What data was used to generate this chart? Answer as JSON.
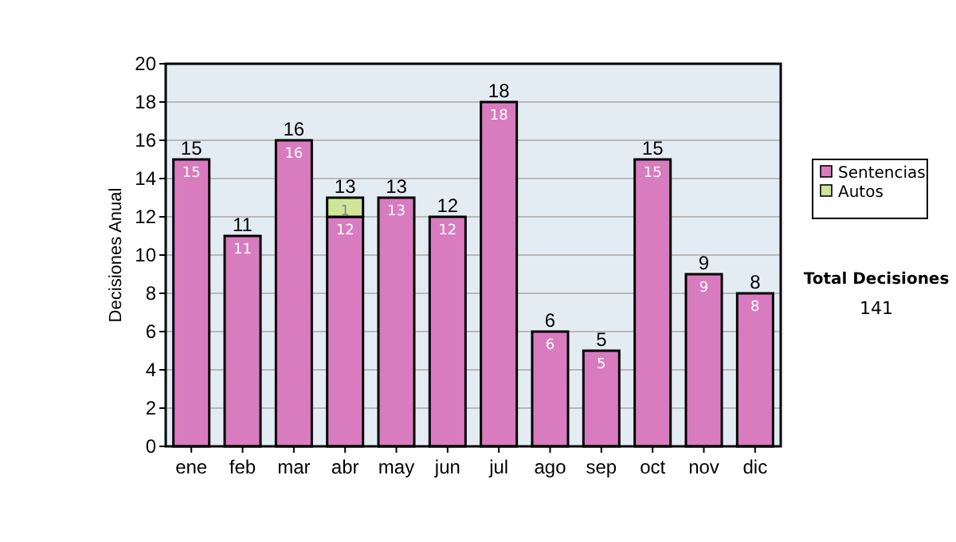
{
  "chart_data": {
    "type": "bar",
    "ylabel": "Decisiones Anual",
    "categories": [
      "ene",
      "feb",
      "mar",
      "abr",
      "may",
      "jun",
      "jul",
      "ago",
      "sep",
      "oct",
      "nov",
      "dic"
    ],
    "series": [
      {
        "name": "Sentencias",
        "color": "#d97bbf",
        "values": [
          15,
          11,
          16,
          12,
          13,
          12,
          18,
          6,
          5,
          15,
          9,
          8
        ]
      },
      {
        "name": "Autos",
        "color": "#cfe59a",
        "values": [
          null,
          null,
          null,
          1,
          null,
          null,
          null,
          null,
          null,
          null,
          null,
          null
        ]
      }
    ],
    "stacked": true,
    "data_labels": true,
    "totals": [
      "15",
      "11",
      "16",
      "13",
      "13",
      "12",
      "18",
      "6",
      "5",
      "15",
      "9",
      "8"
    ],
    "ylim": [
      0,
      20
    ],
    "yticks": [
      0,
      2,
      4,
      6,
      8,
      10,
      12,
      14,
      16,
      18,
      20
    ],
    "grid": "y",
    "legend": "right",
    "annotations": [
      "Total Decisiones",
      "141"
    ]
  }
}
